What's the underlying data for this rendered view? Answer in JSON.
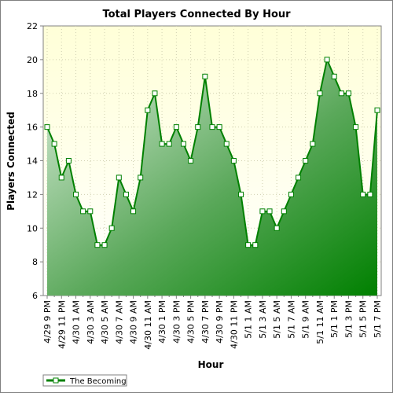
{
  "chart_data": {
    "type": "area",
    "title": "Total Players Connected By Hour",
    "xlabel": "Hour",
    "ylabel": "Players Connected",
    "ylim": [
      6,
      22
    ],
    "yticks": [
      6,
      8,
      10,
      12,
      14,
      16,
      18,
      20,
      22
    ],
    "grid": true,
    "legend": "bottom-left",
    "x": [
      "4/29 9 PM",
      "4/29 10 PM",
      "4/29 11 PM",
      "4/30 12 AM",
      "4/30 1 AM",
      "4/30 2 AM",
      "4/30 3 AM",
      "4/30 4 AM",
      "4/30 5 AM",
      "4/30 6 AM",
      "4/30 7 AM",
      "4/30 8 AM",
      "4/30 9 AM",
      "4/30 10 AM",
      "4/30 11 AM",
      "4/30 12 PM",
      "4/30 1 PM",
      "4/30 2 PM",
      "4/30 3 PM",
      "4/30 4 PM",
      "4/30 5 PM",
      "4/30 6 PM",
      "4/30 7 PM",
      "4/30 8 PM",
      "4/30 9 PM",
      "4/30 10 PM",
      "4/30 11 PM",
      "5/1 12 AM",
      "5/1 1 AM",
      "5/1 2 AM",
      "5/1 3 AM",
      "5/1 4 AM",
      "5/1 5 AM",
      "5/1 6 AM",
      "5/1 7 AM",
      "5/1 8 AM",
      "5/1 9 AM",
      "5/1 10 AM",
      "5/1 11 AM",
      "5/1 12 PM",
      "5/1 1 PM",
      "5/1 2 PM",
      "5/1 3 PM",
      "5/1 4 PM",
      "5/1 5 PM",
      "5/1 6 PM",
      "5/1 7 PM"
    ],
    "tick_labels": [
      "4/29 9 PM",
      "4/29 11 PM",
      "4/30 1 AM",
      "4/30 3 AM",
      "4/30 5 AM",
      "4/30 7 AM",
      "4/30 9 AM",
      "4/30 11 AM",
      "4/30 1 PM",
      "4/30 3 PM",
      "4/30 5 PM",
      "4/30 7 PM",
      "4/30 9 PM",
      "4/30 11 PM",
      "5/1 1 AM",
      "5/1 3 AM",
      "5/1 5 AM",
      "5/1 7 AM",
      "5/1 9 AM",
      "5/1 11 AM",
      "5/1 1 PM",
      "5/1 3 PM",
      "5/1 5 PM",
      "5/1 7 PM"
    ],
    "series": [
      {
        "name": "The Becoming",
        "color": "#008000",
        "values": [
          16,
          15,
          13,
          14,
          12,
          11,
          11,
          9,
          9,
          10,
          13,
          12,
          11,
          13,
          17,
          18,
          15,
          15,
          16,
          15,
          14,
          16,
          19,
          16,
          16,
          15,
          14,
          12,
          9,
          9,
          11,
          11,
          10,
          11,
          12,
          13,
          14,
          15,
          18,
          20,
          19,
          18,
          18,
          16,
          12,
          12,
          17
        ]
      }
    ]
  }
}
